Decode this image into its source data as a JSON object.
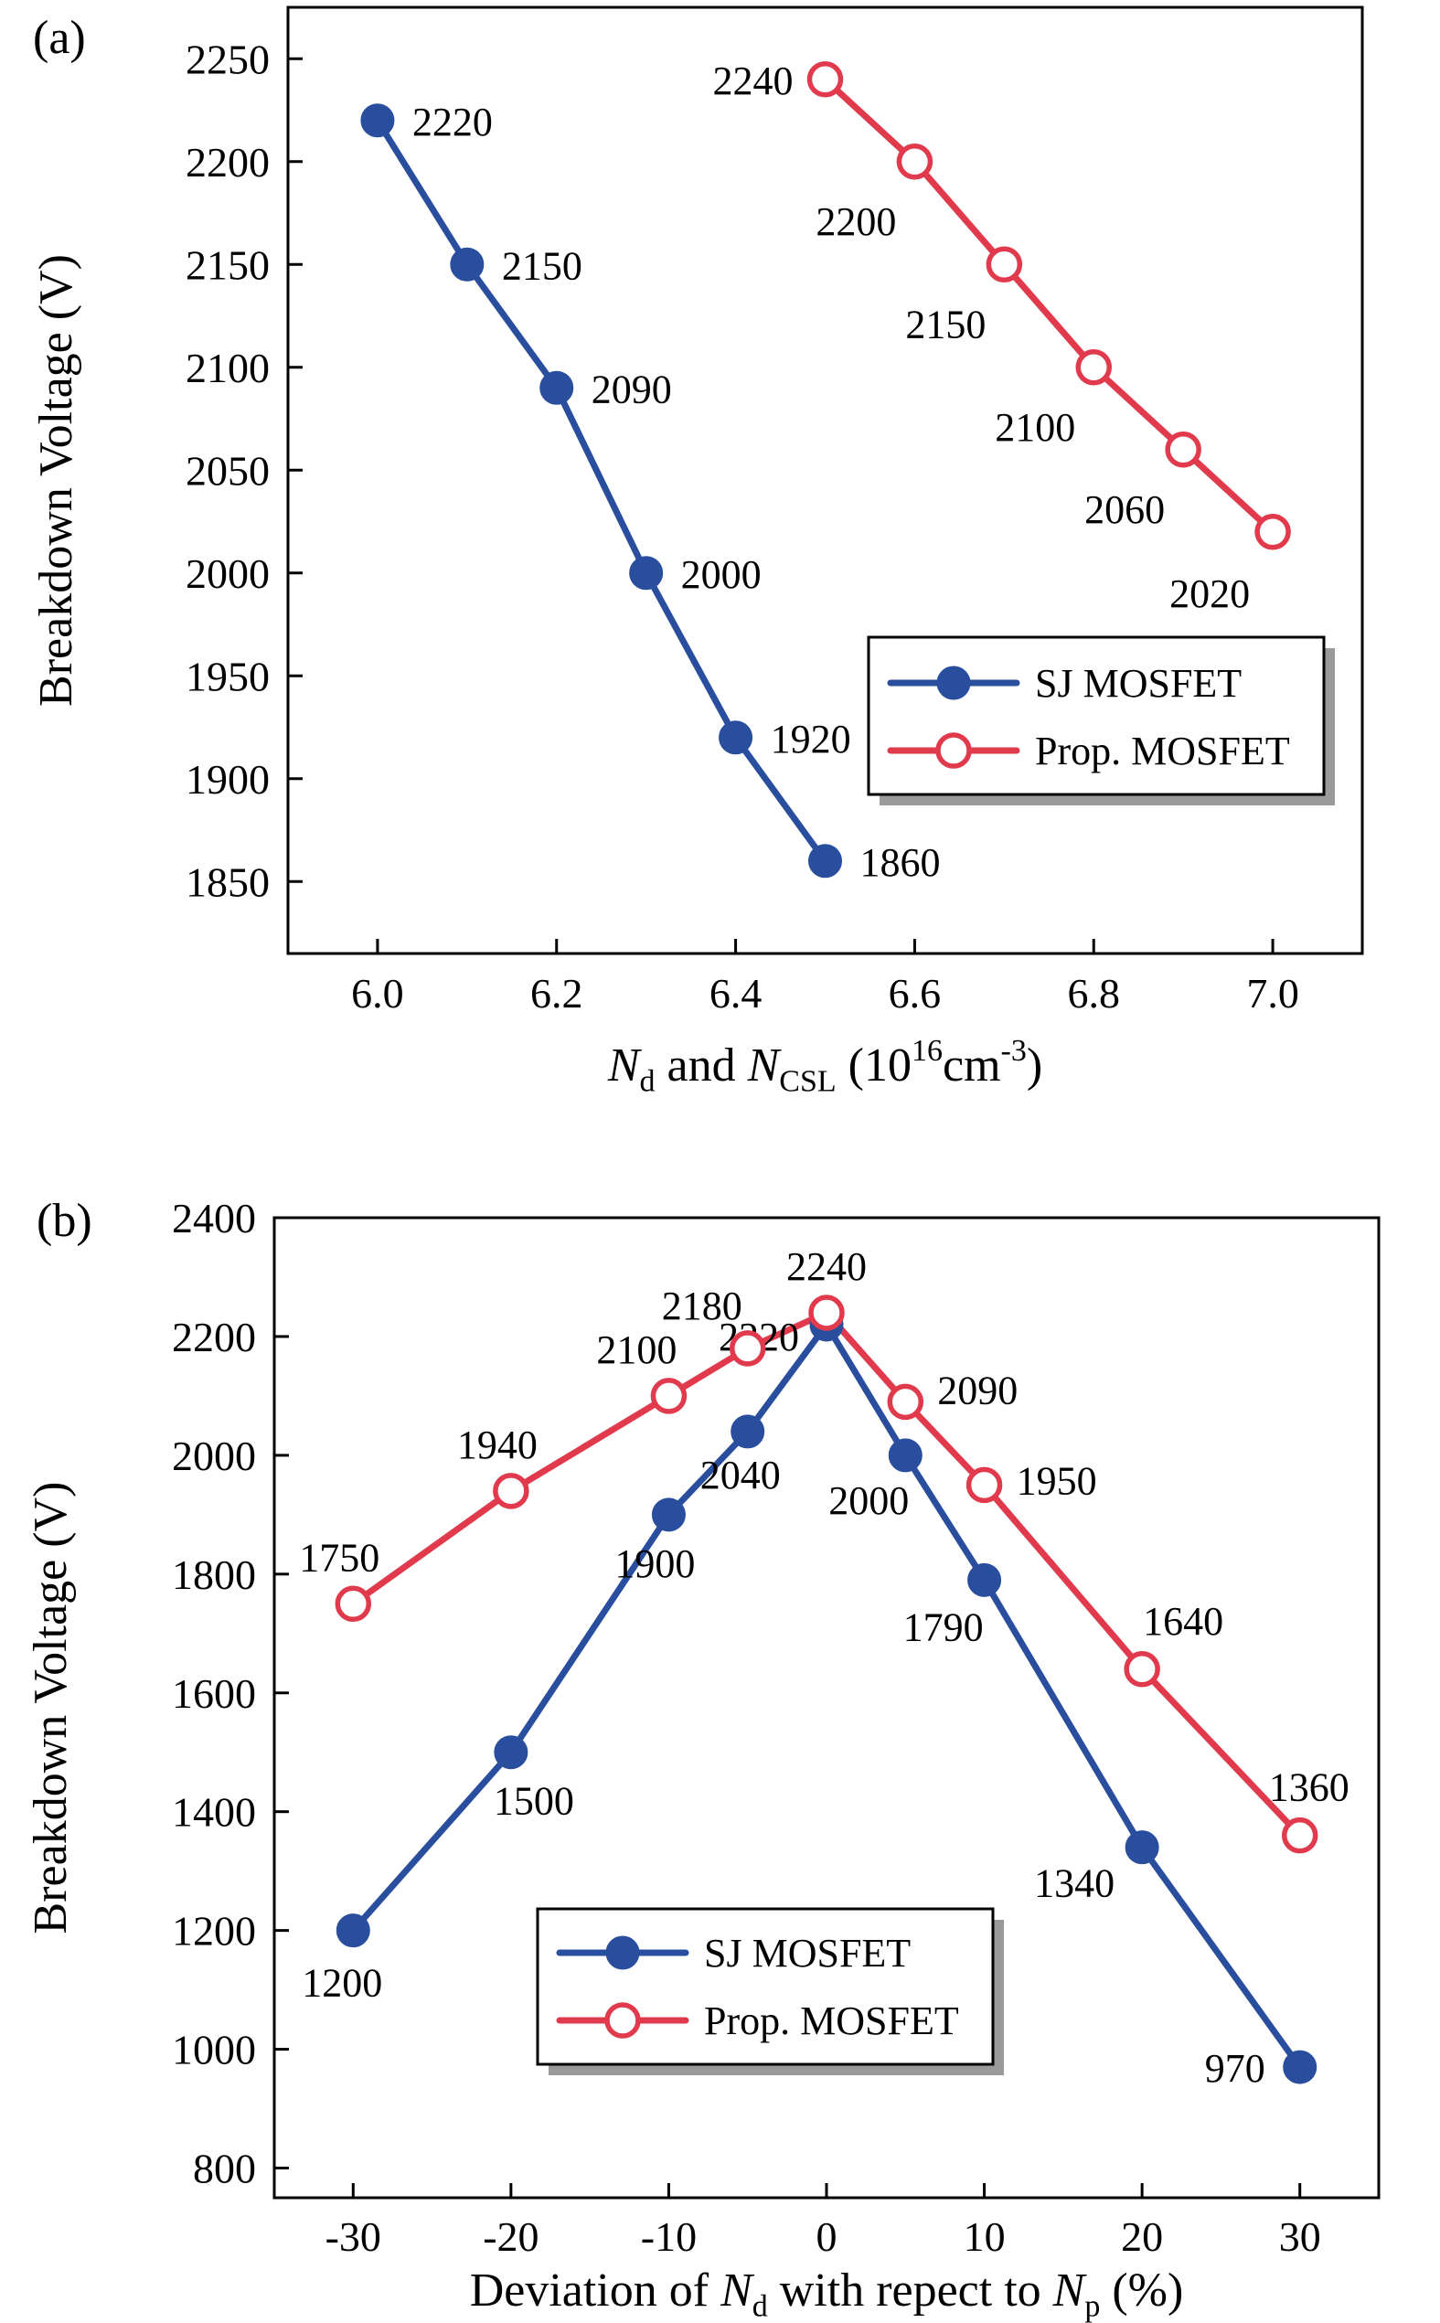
{
  "chart_data": [
    {
      "type": "line",
      "panel_label": "(a)",
      "ylabel": "Breakdown Voltage (V)",
      "xlabel_plain": "Nd and NCSL (10^16 cm^-3)",
      "xlabel_segments": [
        {
          "t": "N",
          "italic": true
        },
        {
          "t": "d",
          "sub": true
        },
        {
          "t": " and "
        },
        {
          "t": "N",
          "italic": true
        },
        {
          "t": "CSL",
          "sub": true
        },
        {
          "t": " (10"
        },
        {
          "t": "16",
          "sup": true
        },
        {
          "t": "cm"
        },
        {
          "t": "-3",
          "sup": true
        },
        {
          "t": ")"
        }
      ],
      "xlim": [
        5.9,
        7.1
      ],
      "ylim": [
        1815,
        2275
      ],
      "grid": false,
      "legend_position": "lower-right",
      "legend_pos": {
        "x": 950,
        "y": 697
      },
      "xticks": [
        {
          "v": 6.0,
          "t": "6.0"
        },
        {
          "v": 6.2,
          "t": "6.2"
        },
        {
          "v": 6.4,
          "t": "6.4"
        },
        {
          "v": 6.6,
          "t": "6.6"
        },
        {
          "v": 6.8,
          "t": "6.8"
        },
        {
          "v": 7.0,
          "t": "7.0"
        }
      ],
      "yticks": [
        {
          "v": 1850,
          "t": "1850"
        },
        {
          "v": 1900,
          "t": "1900"
        },
        {
          "v": 1950,
          "t": "1950"
        },
        {
          "v": 2000,
          "t": "2000"
        },
        {
          "v": 2050,
          "t": "2050"
        },
        {
          "v": 2100,
          "t": "2100"
        },
        {
          "v": 2150,
          "t": "2150"
        },
        {
          "v": 2200,
          "t": "2200"
        },
        {
          "v": 2250,
          "t": "2250"
        }
      ],
      "series": [
        {
          "name": "SJ MOSFET",
          "color": "#2a4e9e",
          "marker": "filled",
          "x": [
            6.0,
            6.1,
            6.2,
            6.3,
            6.4,
            6.5
          ],
          "y": [
            2220,
            2150,
            2090,
            2000,
            1920,
            1860
          ],
          "labels": [
            "2220",
            "2150",
            "2090",
            "2000",
            "1920",
            "1860"
          ],
          "label_offsets": [
            [
              38,
              16,
              "start"
            ],
            [
              38,
              16,
              "start"
            ],
            [
              38,
              16,
              "start"
            ],
            [
              38,
              16,
              "start"
            ],
            [
              38,
              16,
              "start"
            ],
            [
              38,
              16,
              "start"
            ]
          ]
        },
        {
          "name": "Prop. MOSFET",
          "color": "#e03a4c",
          "marker": "open",
          "x": [
            6.5,
            6.6,
            6.7,
            6.8,
            6.9,
            7.0
          ],
          "y": [
            2240,
            2200,
            2150,
            2100,
            2060,
            2020
          ],
          "labels": [
            "2240",
            "2200",
            "2150",
            "2100",
            "2060",
            "2020"
          ],
          "label_offsets": [
            [
              -35,
              16,
              "end"
            ],
            [
              -20,
              80,
              "end"
            ],
            [
              -20,
              80,
              "end"
            ],
            [
              -20,
              80,
              "end"
            ],
            [
              -20,
              80,
              "end"
            ],
            [
              -25,
              82,
              "end"
            ]
          ]
        }
      ]
    },
    {
      "type": "line",
      "panel_label": "(b)",
      "ylabel": "Breakdown Voltage (V)",
      "xlabel_plain": "Deviation of Nd with repect to Np (%)",
      "xlabel_segments": [
        {
          "t": "Deviation of "
        },
        {
          "t": "N",
          "italic": true
        },
        {
          "t": "d",
          "sub": true
        },
        {
          "t": " with repect to "
        },
        {
          "t": "N",
          "italic": true
        },
        {
          "t": "p",
          "sub": true
        },
        {
          "t": " (%)"
        }
      ],
      "xlim": [
        -35,
        35
      ],
      "ylim": [
        750,
        2400
      ],
      "grid": false,
      "legend_position": "lower-center",
      "legend_pos": {
        "x": 588,
        "y": 838
      },
      "xticks": [
        {
          "v": -30,
          "t": "-30"
        },
        {
          "v": -20,
          "t": "-20"
        },
        {
          "v": -10,
          "t": "-10"
        },
        {
          "v": 0,
          "t": "0"
        },
        {
          "v": 10,
          "t": "10"
        },
        {
          "v": 20,
          "t": "20"
        },
        {
          "v": 30,
          "t": "30"
        }
      ],
      "yticks": [
        {
          "v": 800,
          "t": "800"
        },
        {
          "v": 1000,
          "t": "1000"
        },
        {
          "v": 1200,
          "t": "1200"
        },
        {
          "v": 1400,
          "t": "1400"
        },
        {
          "v": 1600,
          "t": "1600"
        },
        {
          "v": 1800,
          "t": "1800"
        },
        {
          "v": 2000,
          "t": "2000"
        },
        {
          "v": 2200,
          "t": "2200"
        },
        {
          "v": 2400,
          "t": "2400"
        }
      ],
      "series": [
        {
          "name": "SJ MOSFET",
          "color": "#2a4e9e",
          "marker": "filled",
          "x": [
            -30,
            -20,
            -10,
            -5,
            0,
            5,
            10,
            20,
            30
          ],
          "y": [
            1200,
            1500,
            1900,
            2040,
            2220,
            2000,
            1790,
            1340,
            970
          ],
          "labels": [
            "1200",
            "1500",
            "1900",
            "2040",
            "2220",
            "2000",
            "1790",
            "1340",
            "970"
          ],
          "label_offsets": [
            [
              -12,
              72,
              "middle"
            ],
            [
              25,
              68,
              "middle"
            ],
            [
              -15,
              68,
              "middle"
            ],
            [
              -8,
              62,
              "middle"
            ],
            [
              -30,
              28,
              "end"
            ],
            [
              -40,
              64,
              "middle"
            ],
            [
              -45,
              66,
              "middle"
            ],
            [
              -30,
              54,
              "end"
            ],
            [
              -38,
              16,
              "end"
            ]
          ]
        },
        {
          "name": "Prop. MOSFET",
          "color": "#e03a4c",
          "marker": "open",
          "x": [
            -30,
            -20,
            -10,
            -5,
            0,
            5,
            10,
            20,
            30
          ],
          "y": [
            1750,
            1940,
            2100,
            2180,
            2240,
            2090,
            1950,
            1640,
            1360
          ],
          "labels": [
            "1750",
            "1940",
            "2100",
            "2180",
            "2240",
            "2090",
            "1950",
            "1640",
            "1360"
          ],
          "label_offsets": [
            [
              -15,
              -36,
              "middle"
            ],
            [
              -15,
              -36,
              "middle"
            ],
            [
              -35,
              -36,
              "middle"
            ],
            [
              -50,
              -32,
              "middle"
            ],
            [
              0,
              -36,
              "middle"
            ],
            [
              35,
              2,
              "start"
            ],
            [
              35,
              10,
              "start"
            ],
            [
              45,
              -38,
              "middle"
            ],
            [
              10,
              -38,
              "middle"
            ]
          ]
        }
      ]
    }
  ]
}
